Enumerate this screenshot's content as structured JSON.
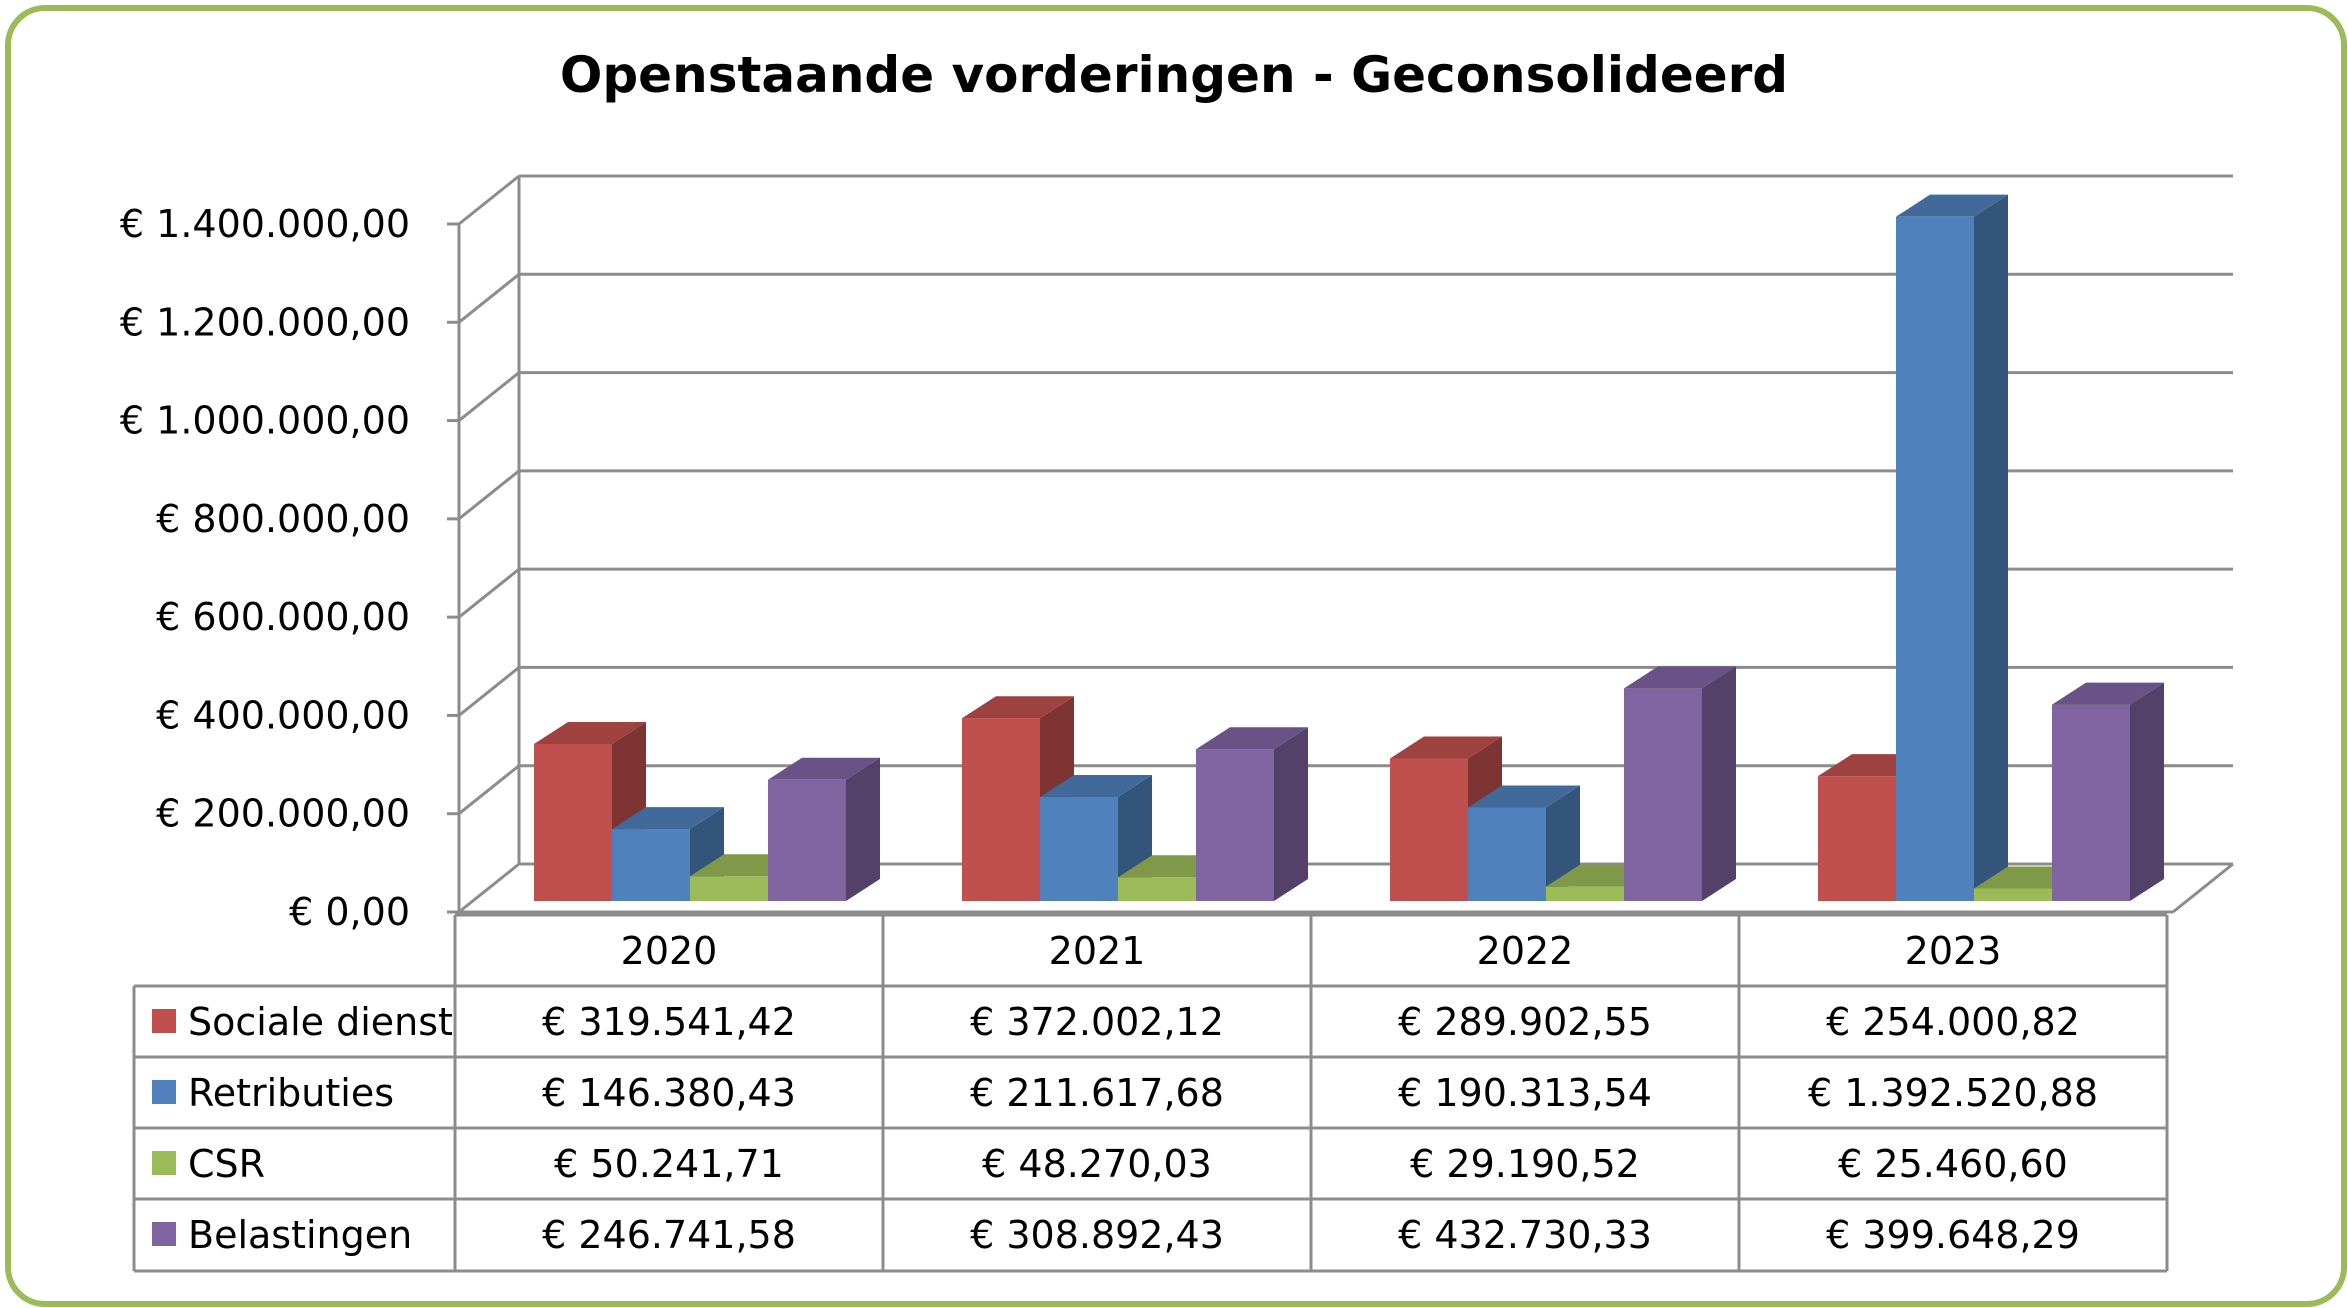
{
  "chart_data": {
    "type": "bar",
    "title": "Openstaande vorderingen - Geconsolideerd",
    "categories": [
      "2020",
      "2021",
      "2022",
      "2023"
    ],
    "ylim": [
      0,
      1400000
    ],
    "y_ticks": [
      "€ 0,00",
      "€ 200.000,00",
      "€ 400.000,00",
      "€ 600.000,00",
      "€ 800.000,00",
      "€ 1.000.000,00",
      "€ 1.200.000,00",
      "€ 1.400.000,00"
    ],
    "grid": true,
    "legend_placement": "data table below chart",
    "series": [
      {
        "name": "Sociale dienst",
        "color": "#c0504d",
        "values": [
          319541.42,
          372002.12,
          289902.55,
          254000.82
        ],
        "labels": [
          "€ 319.541,42",
          "€ 372.002,12",
          "€ 289.902,55",
          "€ 254.000,82"
        ]
      },
      {
        "name": "Retributies",
        "color": "#4f81bd",
        "values": [
          146380.43,
          211617.68,
          190313.54,
          1392520.88
        ],
        "labels": [
          "€ 146.380,43",
          "€ 211.617,68",
          "€ 190.313,54",
          "€ 1.392.520,88"
        ]
      },
      {
        "name": "CSR",
        "color": "#9bbb59",
        "values": [
          50241.71,
          48270.03,
          29190.52,
          25460.6
        ],
        "labels": [
          "€ 50.241,71",
          "€ 48.270,03",
          "€ 29.190,52",
          "€ 25.460,60"
        ]
      },
      {
        "name": "Belastingen",
        "color": "#8064a2",
        "values": [
          246741.58,
          308892.43,
          432730.33,
          399648.29
        ],
        "labels": [
          "€ 246.741,58",
          "€ 308.892,43",
          "€ 432.730,33",
          "€ 399.648,29"
        ]
      }
    ]
  },
  "frame_color": "#9bbb59"
}
